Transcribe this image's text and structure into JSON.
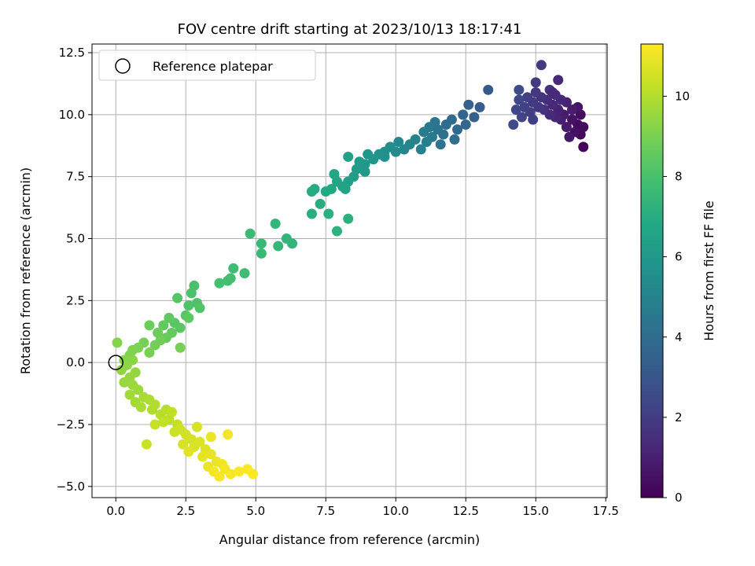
{
  "chart_data": {
    "type": "scatter",
    "title": "FOV centre drift starting at 2023/10/13 18:17:41",
    "xlabel": "Angular distance from reference (arcmin)",
    "ylabel": "Rotation from reference (arcmin)",
    "xlim": [
      -0.85,
      17.55
    ],
    "ylim": [
      -5.45,
      12.85
    ],
    "x_ticks": [
      0,
      2.5,
      5,
      7.5,
      10,
      12.5,
      15,
      17.5
    ],
    "x_tick_labels": [
      "0.0",
      "2.5",
      "5.0",
      "7.5",
      "10.0",
      "12.5",
      "15.0",
      "17.5"
    ],
    "y_ticks": [
      -5,
      -2.5,
      0,
      2.5,
      5,
      7.5,
      10,
      12.5
    ],
    "y_tick_labels": [
      "−5.0",
      "−2.5",
      "0.0",
      "2.5",
      "5.0",
      "7.5",
      "10.0",
      "12.5"
    ],
    "grid": true,
    "legend": {
      "position": "upper-left",
      "entries": [
        "Reference platepar"
      ]
    },
    "reference_point": {
      "name": "Reference platepar",
      "x": 0,
      "y": 0,
      "marker": "open-circle"
    },
    "colorbar": {
      "label": "Hours from first FF file",
      "range": [
        0,
        11.3
      ],
      "ticks": [
        0,
        2,
        4,
        6,
        8,
        10
      ],
      "tick_labels": [
        "0",
        "2",
        "4",
        "6",
        "8",
        "10"
      ],
      "colormap": "viridis"
    },
    "series": [
      {
        "color_by": "hours",
        "points": [
          [
            16.7,
            8.7,
            0.1
          ],
          [
            16.6,
            9.2,
            0.2
          ],
          [
            16.5,
            9.6,
            0.3
          ],
          [
            16.7,
            9.5,
            0.35
          ],
          [
            16.6,
            10.0,
            0.4
          ],
          [
            16.4,
            9.3,
            0.5
          ],
          [
            16.3,
            9.8,
            0.55
          ],
          [
            16.5,
            10.3,
            0.6
          ],
          [
            16.2,
            9.1,
            0.7
          ],
          [
            16.1,
            9.5,
            0.8
          ],
          [
            16.0,
            10.0,
            0.85
          ],
          [
            16.3,
            10.2,
            0.9
          ],
          [
            15.9,
            9.8,
            1.0
          ],
          [
            16.1,
            10.5,
            1.05
          ],
          [
            15.8,
            10.2,
            1.1
          ],
          [
            15.7,
            9.9,
            1.2
          ],
          [
            15.9,
            10.6,
            1.25
          ],
          [
            15.6,
            10.4,
            1.3
          ],
          [
            15.5,
            10.0,
            1.4
          ],
          [
            15.7,
            10.8,
            1.45
          ],
          [
            15.4,
            10.6,
            1.5
          ],
          [
            15.3,
            10.2,
            1.6
          ],
          [
            15.5,
            11.0,
            1.65
          ],
          [
            15.2,
            10.7,
            1.7
          ],
          [
            15.1,
            10.3,
            1.8
          ],
          [
            15.0,
            10.9,
            1.85
          ],
          [
            14.9,
            10.5,
            1.9
          ],
          [
            15.2,
            12.0,
            1.95
          ],
          [
            14.8,
            10.1,
            2.0
          ],
          [
            14.7,
            10.7,
            2.1
          ],
          [
            14.6,
            10.3,
            2.2
          ],
          [
            14.5,
            9.9,
            2.3
          ],
          [
            14.4,
            10.6,
            2.35
          ],
          [
            14.3,
            10.2,
            2.4
          ],
          [
            14.2,
            9.6,
            2.5
          ],
          [
            14.4,
            11.0,
            2.55
          ],
          [
            15.8,
            11.4,
            1.3
          ],
          [
            15.6,
            10.9,
            1.35
          ],
          [
            15.0,
            11.3,
            1.9
          ],
          [
            14.9,
            9.8,
            2.05
          ],
          [
            13.3,
            11.0,
            3.2
          ],
          [
            13.0,
            10.3,
            3.3
          ],
          [
            12.8,
            9.9,
            3.4
          ],
          [
            12.6,
            10.4,
            3.5
          ],
          [
            12.4,
            10.0,
            3.6
          ],
          [
            12.5,
            9.6,
            3.7
          ],
          [
            12.2,
            9.4,
            3.8
          ],
          [
            12.0,
            9.8,
            3.9
          ],
          [
            11.8,
            9.6,
            4.0
          ],
          [
            12.1,
            9.0,
            4.1
          ],
          [
            11.7,
            9.2,
            4.2
          ],
          [
            11.5,
            9.4,
            4.3
          ],
          [
            11.4,
            9.7,
            4.4
          ],
          [
            11.2,
            9.5,
            4.5
          ],
          [
            11.3,
            9.1,
            4.6
          ],
          [
            11.0,
            9.3,
            4.7
          ],
          [
            11.1,
            8.9,
            4.8
          ],
          [
            10.9,
            8.6,
            4.9
          ],
          [
            10.7,
            9.0,
            5.0
          ],
          [
            10.5,
            8.8,
            5.1
          ],
          [
            10.3,
            8.6,
            5.2
          ],
          [
            10.1,
            8.9,
            5.3
          ],
          [
            10.0,
            8.5,
            5.4
          ],
          [
            9.8,
            8.7,
            5.5
          ],
          [
            9.6,
            8.5,
            5.6
          ],
          [
            9.4,
            8.4,
            5.7
          ],
          [
            9.2,
            8.2,
            5.8
          ],
          [
            9.0,
            8.4,
            5.9
          ],
          [
            8.9,
            8.0,
            6.0
          ],
          [
            8.7,
            8.1,
            6.1
          ],
          [
            8.6,
            7.8,
            6.2
          ],
          [
            8.5,
            7.5,
            6.3
          ],
          [
            8.3,
            7.3,
            6.4
          ],
          [
            8.1,
            7.1,
            6.5
          ],
          [
            8.3,
            8.3,
            6.45
          ],
          [
            7.9,
            7.3,
            6.6
          ],
          [
            7.7,
            7.0,
            6.7
          ],
          [
            7.8,
            7.6,
            6.75
          ],
          [
            7.5,
            6.9,
            6.8
          ],
          [
            7.1,
            7.0,
            6.9
          ],
          [
            7.0,
            6.9,
            6.95
          ],
          [
            7.3,
            6.4,
            7.0
          ],
          [
            7.0,
            6.0,
            7.05
          ],
          [
            7.6,
            6.0,
            7.1
          ],
          [
            8.3,
            5.8,
            7.15
          ],
          [
            7.9,
            5.3,
            7.2
          ],
          [
            8.2,
            7.0,
            6.55
          ],
          [
            8.9,
            7.7,
            6.15
          ],
          [
            9.6,
            8.3,
            5.65
          ],
          [
            11.6,
            8.8,
            4.25
          ],
          [
            6.3,
            4.8,
            7.3
          ],
          [
            6.1,
            5.0,
            7.35
          ],
          [
            5.7,
            5.6,
            7.4
          ],
          [
            5.8,
            4.7,
            7.45
          ],
          [
            5.2,
            4.8,
            7.5
          ],
          [
            5.2,
            4.4,
            7.55
          ],
          [
            4.8,
            5.2,
            7.6
          ],
          [
            4.6,
            3.6,
            7.7
          ],
          [
            4.2,
            3.8,
            7.75
          ],
          [
            4.1,
            3.4,
            7.8
          ],
          [
            4.0,
            3.3,
            7.85
          ],
          [
            3.7,
            3.2,
            7.9
          ],
          [
            2.8,
            3.1,
            8.0
          ],
          [
            2.7,
            2.8,
            8.05
          ],
          [
            2.9,
            2.4,
            8.1
          ],
          [
            2.6,
            2.3,
            8.15
          ],
          [
            3.0,
            2.2,
            8.2
          ],
          [
            2.2,
            2.6,
            8.25
          ],
          [
            2.5,
            1.9,
            8.3
          ],
          [
            2.1,
            1.6,
            8.35
          ],
          [
            2.3,
            1.4,
            8.4
          ],
          [
            2.6,
            1.8,
            8.45
          ],
          [
            1.9,
            1.8,
            8.5
          ],
          [
            1.7,
            1.5,
            8.55
          ],
          [
            2.0,
            1.2,
            8.6
          ],
          [
            1.8,
            1.0,
            8.65
          ],
          [
            1.5,
            1.2,
            8.7
          ],
          [
            1.2,
            1.5,
            8.75
          ],
          [
            1.6,
            0.9,
            8.8
          ],
          [
            1.4,
            0.7,
            8.85
          ],
          [
            1.0,
            0.8,
            8.9
          ],
          [
            2.3,
            0.6,
            8.95
          ],
          [
            1.2,
            0.4,
            9.0
          ],
          [
            0.8,
            0.6,
            9.05
          ],
          [
            0.6,
            0.5,
            9.1
          ],
          [
            0.5,
            0.3,
            9.15
          ],
          [
            0.05,
            0.8,
            9.2
          ],
          [
            0.3,
            0.1,
            9.25
          ],
          [
            0.6,
            0.1,
            9.3
          ],
          [
            0.4,
            -0.1,
            9.35
          ],
          [
            0.2,
            -0.3,
            9.4
          ],
          [
            0.7,
            -0.4,
            9.45
          ],
          [
            0.5,
            -0.6,
            9.5
          ],
          [
            0.3,
            -0.8,
            9.55
          ],
          [
            0.6,
            -0.9,
            9.6
          ],
          [
            0.8,
            -1.1,
            9.65
          ],
          [
            0.5,
            -1.3,
            9.7
          ],
          [
            0.7,
            -1.6,
            9.75
          ],
          [
            1.0,
            -1.4,
            9.8
          ],
          [
            0.9,
            -1.8,
            9.85
          ],
          [
            1.2,
            -1.5,
            9.9
          ],
          [
            1.3,
            -1.9,
            9.95
          ],
          [
            1.4,
            -1.7,
            10.0
          ],
          [
            1.6,
            -2.1,
            10.05
          ],
          [
            1.8,
            -1.9,
            10.1
          ],
          [
            1.9,
            -2.3,
            10.15
          ],
          [
            2.0,
            -2.0,
            10.2
          ],
          [
            1.7,
            -2.4,
            10.25
          ],
          [
            2.2,
            -2.5,
            10.3
          ],
          [
            1.4,
            -2.5,
            10.35
          ],
          [
            1.1,
            -3.3,
            10.4
          ],
          [
            2.3,
            -2.7,
            10.45
          ],
          [
            2.5,
            -2.9,
            10.5
          ],
          [
            2.7,
            -3.1,
            10.55
          ],
          [
            2.4,
            -3.3,
            10.6
          ],
          [
            2.8,
            -3.4,
            10.65
          ],
          [
            3.0,
            -3.2,
            10.7
          ],
          [
            3.2,
            -3.5,
            10.75
          ],
          [
            2.6,
            -3.6,
            10.8
          ],
          [
            3.1,
            -3.8,
            10.85
          ],
          [
            3.4,
            -3.7,
            10.9
          ],
          [
            3.6,
            -4.0,
            10.95
          ],
          [
            3.3,
            -4.2,
            11.0
          ],
          [
            3.8,
            -4.1,
            11.05
          ],
          [
            3.5,
            -4.4,
            11.1
          ],
          [
            3.9,
            -4.3,
            11.15
          ],
          [
            4.1,
            -4.5,
            11.2
          ],
          [
            3.7,
            -4.6,
            11.22
          ],
          [
            4.4,
            -4.4,
            11.24
          ],
          [
            4.7,
            -4.3,
            11.26
          ],
          [
            4.9,
            -4.5,
            11.28
          ],
          [
            4.0,
            -2.9,
            11.1
          ],
          [
            3.4,
            -3.0,
            11.0
          ],
          [
            2.9,
            -2.6,
            10.6
          ],
          [
            2.1,
            -2.8,
            10.4
          ]
        ]
      }
    ]
  }
}
